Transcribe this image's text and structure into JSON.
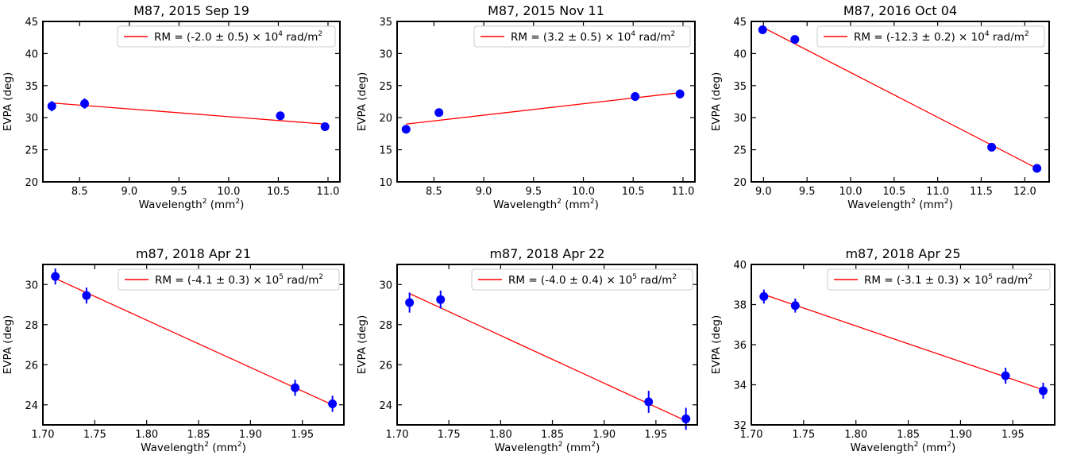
{
  "chart_data": [
    {
      "type": "scatter",
      "title": "M87, 2015 Sep 19",
      "xlabel": "Wavelength",
      "xlabel_sup": "2",
      "xlabel_units": " (mm",
      "xlabel_units_sup": "2",
      "xlabel_close": ")",
      "ylabel": "EVPA (deg)",
      "xlim": [
        8.13,
        11.12
      ],
      "ylim": [
        20,
        45
      ],
      "xticks": [
        8.5,
        9.0,
        9.5,
        10.0,
        10.5,
        11.0
      ],
      "xtick_labels": [
        "8.5",
        "9.0",
        "9.5",
        "10.0",
        "10.5",
        "11.0"
      ],
      "yticks": [
        20,
        25,
        30,
        35,
        40,
        45
      ],
      "ytick_labels": [
        "20",
        "25",
        "30",
        "35",
        "40",
        "45"
      ],
      "points": [
        {
          "x": 8.22,
          "y": 31.8,
          "err": 0.8
        },
        {
          "x": 8.55,
          "y": 32.2,
          "err": 0.8
        },
        {
          "x": 10.52,
          "y": 30.3,
          "err": 0.6
        },
        {
          "x": 10.97,
          "y": 28.6,
          "err": 0.6
        }
      ],
      "fit": {
        "x": [
          8.22,
          10.97
        ],
        "y": [
          32.3,
          29.0
        ]
      },
      "legend": {
        "location": "top-right",
        "prefix": "RM = (-2.0 ± 0.5) × 10",
        "exp": "4",
        "suffix": " rad/m",
        "suffix_sup": "2"
      }
    },
    {
      "type": "scatter",
      "title": "M87, 2015 Nov 11",
      "xlabel": "Wavelength",
      "xlabel_sup": "2",
      "xlabel_units": " (mm",
      "xlabel_units_sup": "2",
      "xlabel_close": ")",
      "ylabel": "EVPA (deg)",
      "xlim": [
        8.13,
        11.12
      ],
      "ylim": [
        10,
        35
      ],
      "xticks": [
        8.5,
        9.0,
        9.5,
        10.0,
        10.5,
        11.0
      ],
      "xtick_labels": [
        "8.5",
        "9.0",
        "9.5",
        "10.0",
        "10.5",
        "11.0"
      ],
      "yticks": [
        10,
        15,
        20,
        25,
        30,
        35
      ],
      "ytick_labels": [
        "10",
        "15",
        "20",
        "25",
        "30",
        "35"
      ],
      "points": [
        {
          "x": 8.22,
          "y": 18.2,
          "err": 0.5
        },
        {
          "x": 8.55,
          "y": 20.8,
          "err": 0.6
        },
        {
          "x": 10.52,
          "y": 23.3,
          "err": 0.7
        },
        {
          "x": 10.97,
          "y": 23.7,
          "err": 0.7
        }
      ],
      "fit": {
        "x": [
          8.22,
          10.97
        ],
        "y": [
          19.0,
          23.9
        ]
      },
      "legend": {
        "location": "top-right",
        "prefix": "RM = (3.2 ± 0.5) × 10",
        "exp": "4",
        "suffix": " rad/m",
        "suffix_sup": "2"
      }
    },
    {
      "type": "scatter",
      "title": "M87, 2016 Oct 04",
      "xlabel": "Wavelength",
      "xlabel_sup": "2",
      "xlabel_units": " (mm",
      "xlabel_units_sup": "2",
      "xlabel_close": ")",
      "ylabel": "EVPA (deg)",
      "xlim": [
        8.86,
        12.28
      ],
      "ylim": [
        20,
        45
      ],
      "xticks": [
        9.0,
        9.5,
        10.0,
        10.5,
        11.0,
        11.5,
        12.0
      ],
      "xtick_labels": [
        "9.0",
        "9.5",
        "10.0",
        "10.5",
        "11.0",
        "11.5",
        "12.0"
      ],
      "yticks": [
        20,
        25,
        30,
        35,
        40,
        45
      ],
      "ytick_labels": [
        "20",
        "25",
        "30",
        "35",
        "40",
        "45"
      ],
      "points": [
        {
          "x": 8.99,
          "y": 43.7,
          "err": 0.4
        },
        {
          "x": 9.36,
          "y": 42.2,
          "err": 0.4
        },
        {
          "x": 11.62,
          "y": 25.4,
          "err": 0.4
        },
        {
          "x": 12.14,
          "y": 22.1,
          "err": 0.4
        }
      ],
      "fit": {
        "x": [
          8.99,
          12.14
        ],
        "y": [
          44.1,
          22.1
        ]
      },
      "legend": {
        "location": "top-right",
        "prefix": "RM = (-12.3 ± 0.2) × 10",
        "exp": "4",
        "suffix": " rad/m",
        "suffix_sup": "2"
      }
    },
    {
      "type": "scatter",
      "title": "m87, 2018 Apr 21",
      "xlabel": "Wavelength",
      "xlabel_sup": "2",
      "xlabel_units": " (mm",
      "xlabel_units_sup": "2",
      "xlabel_close": ")",
      "ylabel": "EVPA (deg)",
      "xlim": [
        1.7,
        1.99
      ],
      "ylim": [
        23.0,
        31.0
      ],
      "xticks": [
        1.7,
        1.75,
        1.8,
        1.85,
        1.9,
        1.95
      ],
      "xtick_labels": [
        "1.70",
        "1.75",
        "1.80",
        "1.85",
        "1.90",
        "1.95"
      ],
      "yticks": [
        24,
        26,
        28,
        30
      ],
      "ytick_labels": [
        "24",
        "26",
        "28",
        "30"
      ],
      "points": [
        {
          "x": 1.712,
          "y": 30.4,
          "err": 0.4
        },
        {
          "x": 1.742,
          "y": 29.45,
          "err": 0.4
        },
        {
          "x": 1.943,
          "y": 24.85,
          "err": 0.4
        },
        {
          "x": 1.979,
          "y": 24.05,
          "err": 0.4
        }
      ],
      "fit": {
        "x": [
          1.712,
          1.979
        ],
        "y": [
          30.3,
          24.0
        ]
      },
      "legend": {
        "location": "top-right",
        "prefix": "RM = (-4.1 ± 0.3) × 10",
        "exp": "5",
        "suffix": " rad/m",
        "suffix_sup": "2"
      }
    },
    {
      "type": "scatter",
      "title": "m87, 2018 Apr 22",
      "xlabel": "Wavelength",
      "xlabel_sup": "2",
      "xlabel_units": " (mm",
      "xlabel_units_sup": "2",
      "xlabel_close": ")",
      "ylabel": "EVPA (deg)",
      "xlim": [
        1.7,
        1.99
      ],
      "ylim": [
        23.0,
        31.0
      ],
      "xticks": [
        1.7,
        1.75,
        1.8,
        1.85,
        1.9,
        1.95
      ],
      "xtick_labels": [
        "1.70",
        "1.75",
        "1.80",
        "1.85",
        "1.90",
        "1.95"
      ],
      "yticks": [
        24,
        26,
        28,
        30
      ],
      "ytick_labels": [
        "24",
        "26",
        "28",
        "30"
      ],
      "points": [
        {
          "x": 1.712,
          "y": 29.1,
          "err": 0.5
        },
        {
          "x": 1.742,
          "y": 29.25,
          "err": 0.45
        },
        {
          "x": 1.943,
          "y": 24.15,
          "err": 0.55
        },
        {
          "x": 1.979,
          "y": 23.3,
          "err": 0.55
        }
      ],
      "fit": {
        "x": [
          1.712,
          1.979
        ],
        "y": [
          29.55,
          23.2
        ]
      },
      "legend": {
        "location": "top-right",
        "prefix": "RM = (-4.0 ± 0.4) × 10",
        "exp": "5",
        "suffix": " rad/m",
        "suffix_sup": "2"
      }
    },
    {
      "type": "scatter",
      "title": "m87, 2018 Apr 25",
      "xlabel": "Wavelength",
      "xlabel_sup": "2",
      "xlabel_units": " (mm",
      "xlabel_units_sup": "2",
      "xlabel_close": ")",
      "ylabel": "EVPA (deg)",
      "xlim": [
        1.7,
        1.99
      ],
      "ylim": [
        32,
        40
      ],
      "xticks": [
        1.7,
        1.75,
        1.8,
        1.85,
        1.9,
        1.95
      ],
      "xtick_labels": [
        "1.70",
        "1.75",
        "1.80",
        "1.85",
        "1.90",
        "1.95"
      ],
      "yticks": [
        32,
        34,
        36,
        38,
        40
      ],
      "ytick_labels": [
        "32",
        "34",
        "36",
        "38",
        "40"
      ],
      "points": [
        {
          "x": 1.712,
          "y": 38.4,
          "err": 0.35
        },
        {
          "x": 1.742,
          "y": 37.95,
          "err": 0.35
        },
        {
          "x": 1.943,
          "y": 34.45,
          "err": 0.4
        },
        {
          "x": 1.979,
          "y": 33.7,
          "err": 0.4
        }
      ],
      "fit": {
        "x": [
          1.712,
          1.979
        ],
        "y": [
          38.5,
          33.75
        ]
      },
      "legend": {
        "location": "top-right",
        "prefix": "RM = (-3.1 ± 0.3) × 10",
        "exp": "5",
        "suffix": " rad/m",
        "suffix_sup": "2"
      }
    }
  ],
  "colors": {
    "points": "#0000ff",
    "fit": "#ff0000",
    "axes": "#000000",
    "legend_border": "#cccccc"
  }
}
